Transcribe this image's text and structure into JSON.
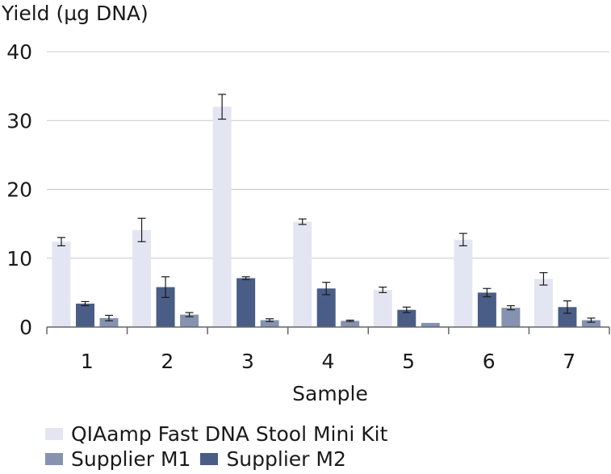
{
  "chart_data": {
    "type": "bar",
    "title": "",
    "ylabel": "Yield (µg DNA)",
    "xlabel": "Sample",
    "ylim": [
      0,
      40
    ],
    "yticks": [
      0,
      10,
      20,
      30,
      40
    ],
    "grid": true,
    "legend_position": "bottom",
    "categories": [
      "1",
      "2",
      "3",
      "4",
      "5",
      "6",
      "7"
    ],
    "series": [
      {
        "name": "QIAamp Fast DNA Stool Mini Kit",
        "color": "#e3e6f2",
        "values": [
          12.4,
          14.1,
          32.0,
          15.3,
          5.4,
          12.7,
          7.0
        ],
        "errors": [
          0.6,
          1.7,
          1.8,
          0.4,
          0.4,
          0.9,
          0.9
        ]
      },
      {
        "name": "Supplier M2",
        "color": "#4a5d87",
        "values": [
          3.4,
          5.8,
          7.1,
          5.6,
          2.5,
          5.0,
          2.9
        ],
        "errors": [
          0.3,
          1.5,
          0.2,
          0.9,
          0.4,
          0.6,
          0.9
        ]
      },
      {
        "name": "Supplier M1",
        "color": "#8592b0",
        "values": [
          1.3,
          1.8,
          1.0,
          0.9,
          0.6,
          2.8,
          1.0
        ],
        "errors": [
          0.4,
          0.3,
          0.2,
          0.1,
          0.0,
          0.3,
          0.3
        ]
      }
    ]
  },
  "legend": {
    "rows": [
      [
        {
          "series": 0
        }
      ],
      [
        {
          "series": 2
        },
        {
          "series": 1
        }
      ]
    ]
  }
}
